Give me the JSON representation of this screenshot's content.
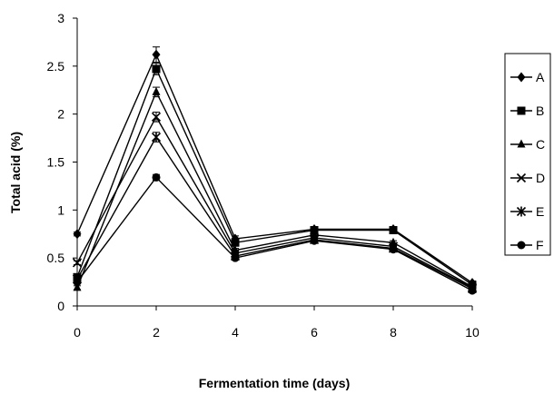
{
  "chart_data": {
    "type": "line",
    "xlabel": "Fermentation time (days)",
    "ylabel": "Total  acid (%)",
    "x": [
      0,
      2,
      4,
      6,
      8,
      10
    ],
    "xlim": [
      0,
      10
    ],
    "ylim": [
      0,
      3
    ],
    "xticks": [
      "0",
      "2",
      "4",
      "6",
      "8",
      "10"
    ],
    "yticks": [
      "0",
      "0.5",
      "1",
      "1.5",
      "2",
      "2.5",
      "3"
    ],
    "grid": false,
    "legend_position": "right",
    "series": [
      {
        "name": "A",
        "marker": "diamond",
        "values": [
          0.75,
          2.62,
          0.7,
          0.8,
          0.8,
          0.24
        ],
        "errors": [
          0.02,
          0.08,
          0.03,
          0.02,
          0.02,
          0.02
        ]
      },
      {
        "name": "B",
        "marker": "square",
        "values": [
          0.3,
          2.47,
          0.66,
          0.79,
          0.79,
          0.22
        ],
        "errors": [
          0.02,
          0.06,
          0.02,
          0.02,
          0.02,
          0.02
        ]
      },
      {
        "name": "C",
        "marker": "triangle",
        "values": [
          0.19,
          2.23,
          0.58,
          0.74,
          0.66,
          0.2
        ],
        "errors": [
          0.02,
          0.05,
          0.02,
          0.02,
          0.02,
          0.02
        ]
      },
      {
        "name": "D",
        "marker": "x",
        "values": [
          0.45,
          1.97,
          0.55,
          0.71,
          0.62,
          0.19
        ],
        "errors": [
          0.02,
          0.05,
          0.02,
          0.02,
          0.02,
          0.02
        ]
      },
      {
        "name": "E",
        "marker": "star",
        "values": [
          0.28,
          1.76,
          0.52,
          0.69,
          0.6,
          0.18
        ],
        "errors": [
          0.02,
          0.05,
          0.02,
          0.02,
          0.02,
          0.02
        ]
      },
      {
        "name": "F",
        "marker": "circle",
        "values": [
          0.25,
          1.34,
          0.5,
          0.68,
          0.59,
          0.16
        ],
        "errors": [
          0.02,
          0.03,
          0.02,
          0.02,
          0.02,
          0.02
        ]
      }
    ]
  }
}
